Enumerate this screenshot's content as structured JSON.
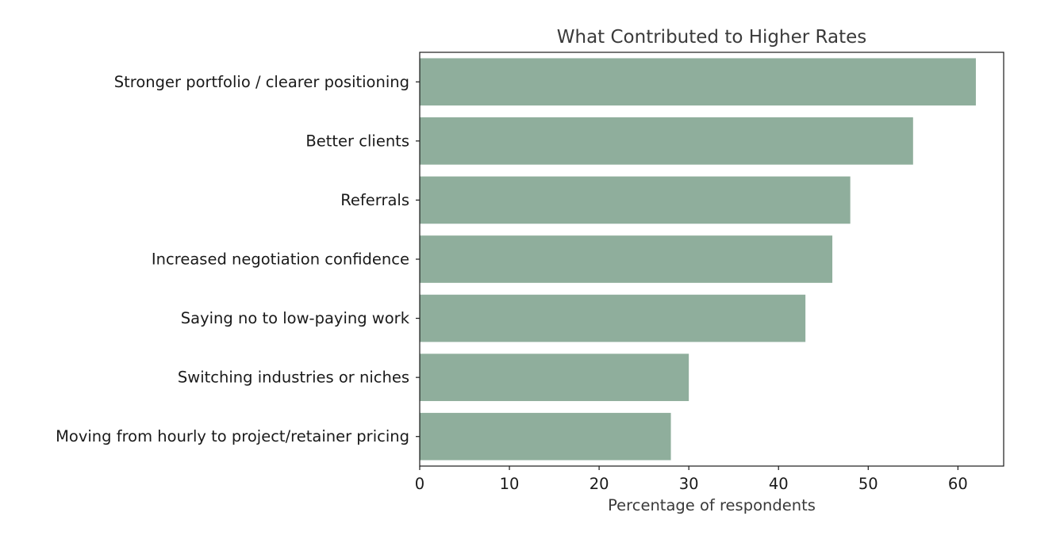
{
  "chart_data": {
    "type": "bar",
    "orientation": "horizontal",
    "title": "What Contributed to Higher Rates",
    "xlabel": "Percentage of respondents",
    "ylabel": "",
    "categories": [
      "Stronger portfolio / clearer positioning",
      "Better clients",
      "Referrals",
      "Increased negotiation confidence",
      "Saying no to low-paying work",
      "Switching industries or niches",
      "Moving from hourly to project/retainer pricing"
    ],
    "values": [
      62,
      55,
      48,
      46,
      43,
      30,
      28
    ],
    "xlim": [
      0,
      65.1
    ],
    "xticks": [
      0,
      10,
      20,
      30,
      40,
      50,
      60
    ],
    "grid": false,
    "legend": "none",
    "colors": {
      "bar": "#8fae9c",
      "axis": "#1a1a1a",
      "title": "#3a3a3a",
      "text": "#1a1a1a"
    }
  }
}
